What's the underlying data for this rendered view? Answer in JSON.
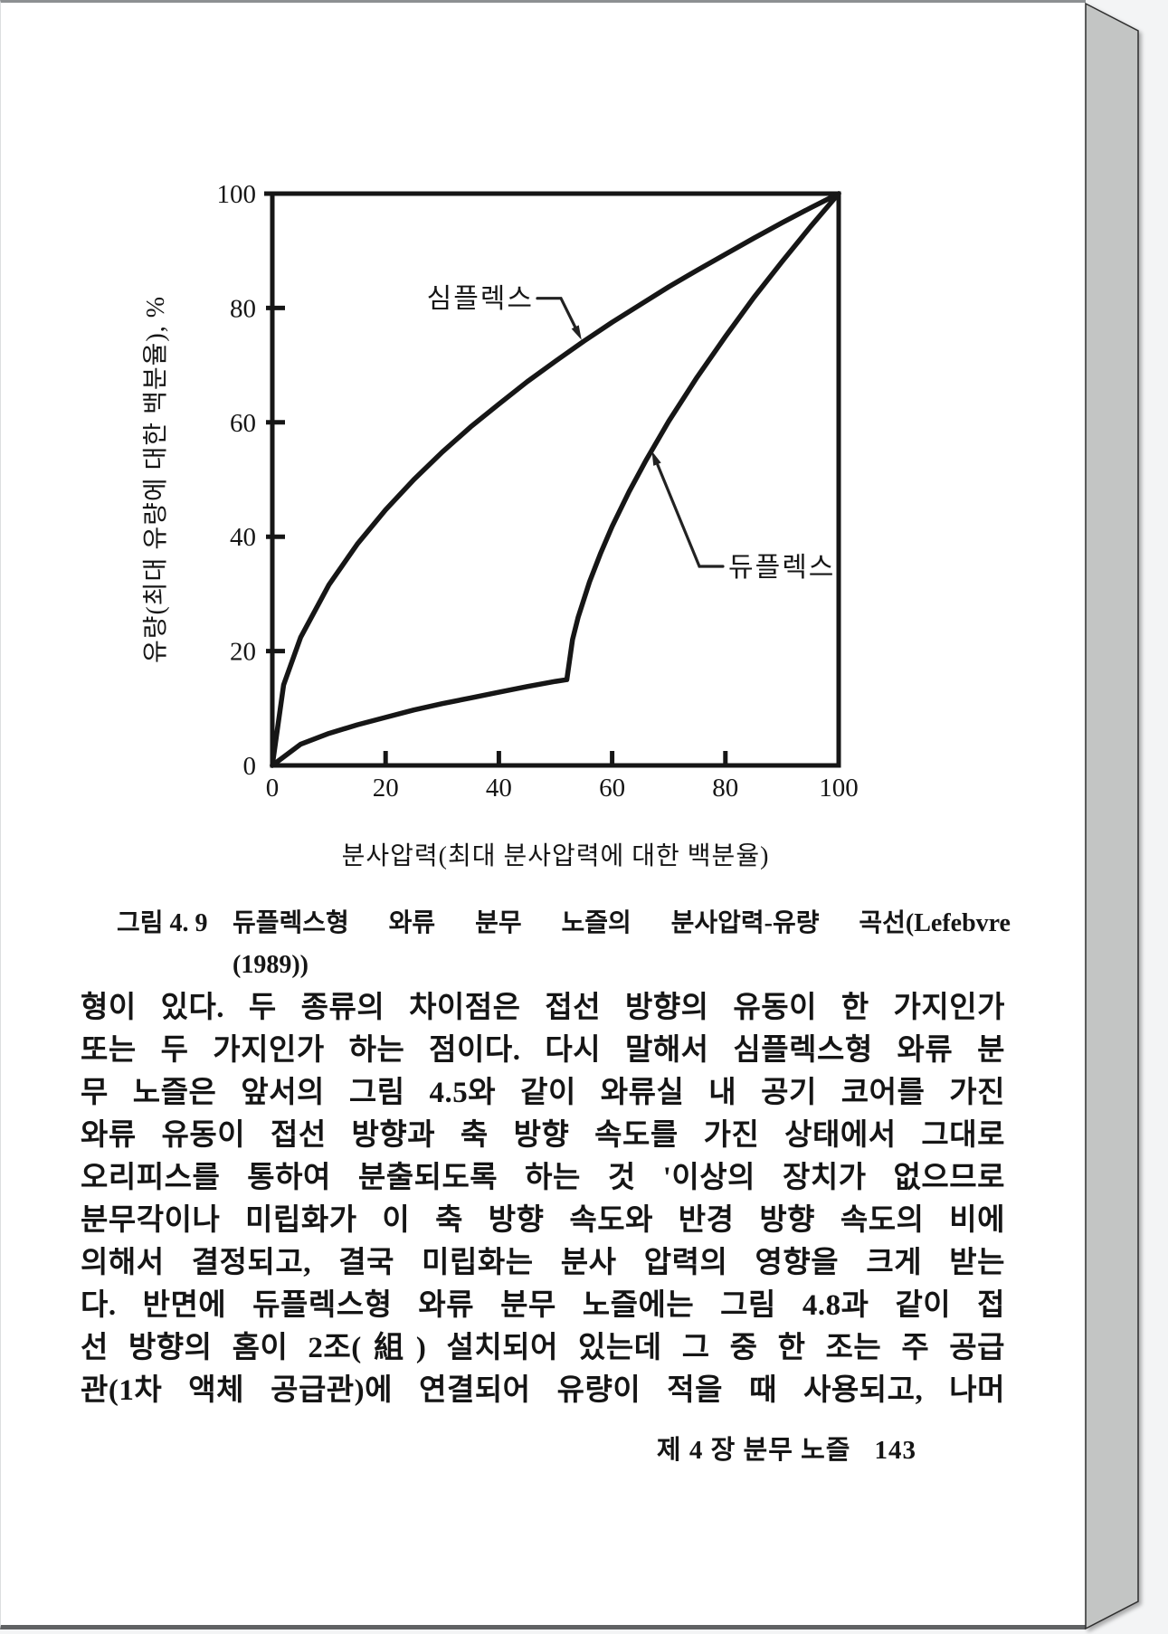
{
  "page": {
    "figure": {
      "caption_label": "그림 4. 9",
      "caption_text": "듀플렉스형  와류  분무  노즐의  분사압력-유량  곡선(Lefebvre",
      "caption_text2": "(1989))"
    },
    "body_lines": [
      "형이 있다. 두 종류의 차이점은 접선 방향의 유동이 한 가지인가",
      "또는 두 가지인가 하는 점이다. 다시 말해서 심플렉스형 와류 분",
      "무 노즐은 앞서의 그림 4.5와 같이 와류실 내 공기 코어를 가진",
      "와류 유동이 접선 방향과 축 방향 속도를 가진 상태에서 그대로",
      "오리피스를 통하여 분출되도록 하는 것 '이상의 장치가 없으므로",
      "분무각이나 미립화가 이 축 방향 속도와 반경 방향 속도의 비에",
      "의해서 결정되고, 결국 미립화는 분사 압력의 영향을 크게 받는",
      "다. 반면에 듀플렉스형 와류 분무 노즐에는 그림 4.8과 같이 접",
      "선 방향의 홈이 2조(組) 설치되어 있는데 그 중 한 조는 주 공급",
      "관(1차 액체 공급관)에 연결되어 유량이 적을 때 사용되고, 나머"
    ],
    "footer": {
      "chapter": "제 4 장 분무 노즐",
      "page_number": "143"
    }
  },
  "chart_data": {
    "type": "line",
    "xlabel": "분사압력(최대 분사압력에 대한 백분율)",
    "ylabel": "유량(최대 유량에 대한 백분율), %",
    "xlim": [
      0,
      100
    ],
    "ylim": [
      0,
      100
    ],
    "x_ticks": [
      0,
      20,
      40,
      60,
      80,
      100
    ],
    "y_ticks": [
      0,
      20,
      40,
      60,
      80,
      100
    ],
    "grid": false,
    "frame": "full-box",
    "series": [
      {
        "name": "심플렉스",
        "shape": "square-root rise from origin to (100,100)",
        "points": [
          [
            0,
            0
          ],
          [
            2,
            14.1
          ],
          [
            5,
            22.4
          ],
          [
            10,
            31.6
          ],
          [
            15,
            38.7
          ],
          [
            20,
            44.7
          ],
          [
            25,
            50
          ],
          [
            30,
            54.8
          ],
          [
            35,
            59.2
          ],
          [
            40,
            63.2
          ],
          [
            45,
            67.1
          ],
          [
            50,
            70.7
          ],
          [
            55,
            74.2
          ],
          [
            60,
            77.5
          ],
          [
            65,
            80.6
          ],
          [
            70,
            83.7
          ],
          [
            75,
            86.6
          ],
          [
            80,
            89.4
          ],
          [
            85,
            92.2
          ],
          [
            90,
            94.9
          ],
          [
            95,
            97.5
          ],
          [
            100,
            100
          ]
        ]
      },
      {
        "name": "듀플렉스",
        "shape": "slow rise to transition kink at (52,15), then steep secondary rise to (100,100)",
        "points": [
          [
            0,
            0
          ],
          [
            5,
            3.7
          ],
          [
            10,
            5.6
          ],
          [
            15,
            7.1
          ],
          [
            20,
            8.4
          ],
          [
            25,
            9.7
          ],
          [
            30,
            10.8
          ],
          [
            35,
            11.8
          ],
          [
            40,
            12.8
          ],
          [
            45,
            13.8
          ],
          [
            50,
            14.7
          ],
          [
            52,
            15
          ],
          [
            53,
            22
          ],
          [
            54,
            25.9
          ],
          [
            56,
            32.1
          ],
          [
            58,
            37.2
          ],
          [
            60,
            41.8
          ],
          [
            63,
            47.9
          ],
          [
            66,
            53.4
          ],
          [
            70,
            60.2
          ],
          [
            75,
            67.9
          ],
          [
            80,
            75
          ],
          [
            85,
            81.8
          ],
          [
            90,
            88.1
          ],
          [
            95,
            94.2
          ],
          [
            100,
            100
          ]
        ]
      }
    ],
    "annotations": [
      {
        "target_series": "심플렉스",
        "arrow_touches": [
          54.6,
          74.4
        ]
      },
      {
        "target_series": "듀플렉스",
        "arrow_touches": [
          67,
          55
        ]
      }
    ]
  }
}
